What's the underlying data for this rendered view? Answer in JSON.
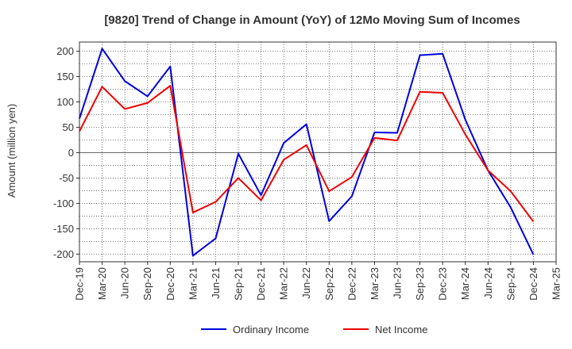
{
  "chart_data": {
    "type": "line",
    "title": "[9820]  Trend of Change in Amount (YoY) of 12Mo Moving Sum of Incomes",
    "ylabel": "Amount (million yen)",
    "xlabel": "",
    "ylim": [
      -215,
      218
    ],
    "yticks": [
      200,
      150,
      100,
      50,
      0,
      -50,
      -100,
      -150,
      -200
    ],
    "grid": true,
    "legend_position": "bottom",
    "x": [
      "Dec-19",
      "Mar-20",
      "Jun-20",
      "Sep-20",
      "Dec-20",
      "Mar-21",
      "Jun-21",
      "Sep-21",
      "Dec-21",
      "Mar-22",
      "Jun-22",
      "Sep-22",
      "Dec-22",
      "Mar-23",
      "Jun-23",
      "Sep-23",
      "Dec-23",
      "Mar-24",
      "Jun-24",
      "Sep-24",
      "Dec-24",
      "Mar-25"
    ],
    "series": [
      {
        "name": "Ordinary Income",
        "color": "#0000dd",
        "values": [
          67,
          205,
          141,
          111,
          170,
          -203,
          -169,
          -2,
          -84,
          19,
          56,
          -135,
          -86,
          40,
          39,
          192,
          195,
          65,
          -35,
          -108,
          -201,
          null
        ]
      },
      {
        "name": "Net Income",
        "color": "#ee0000",
        "values": [
          42,
          130,
          86,
          98,
          132,
          -118,
          -97,
          -50,
          -94,
          -14,
          15,
          -76,
          -48,
          29,
          24,
          120,
          118,
          36,
          -35,
          -76,
          -136,
          null
        ]
      }
    ]
  }
}
